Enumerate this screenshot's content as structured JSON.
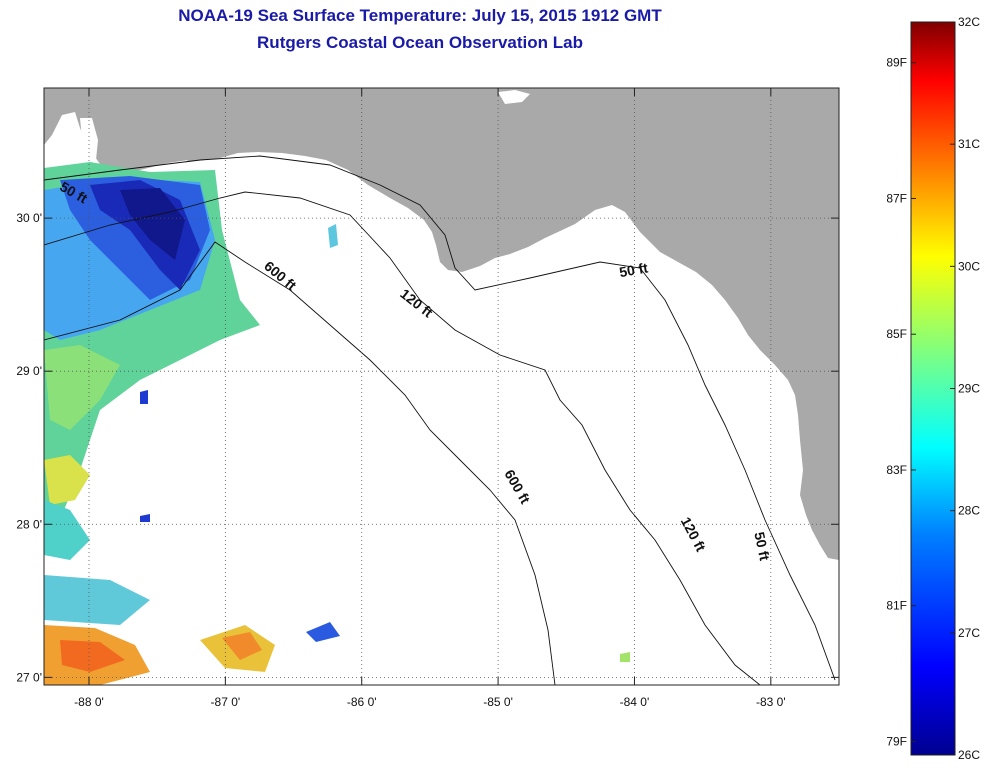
{
  "title": {
    "line1": "NOAA-19 Sea Surface Temperature:  July 15, 2015 1912 GMT",
    "line2": "Rutgers Coastal Ocean Observation Lab"
  },
  "map": {
    "lon_range": [
      -88.33,
      -82.5
    ],
    "lat_range": [
      26.95,
      30.85
    ],
    "x_ticks": [
      {
        "value": -88,
        "label": "-88 0'"
      },
      {
        "value": -87,
        "label": "-87 0'"
      },
      {
        "value": -86,
        "label": "-86 0'"
      },
      {
        "value": -85,
        "label": "-85 0'"
      },
      {
        "value": -84,
        "label": "-84 0'"
      },
      {
        "value": -83,
        "label": "-83 0'"
      }
    ],
    "y_ticks": [
      {
        "value": 30,
        "label": "30 0'"
      },
      {
        "value": 29,
        "label": "29 0'"
      },
      {
        "value": 28,
        "label": "28 0'"
      },
      {
        "value": 27,
        "label": "27 0'"
      }
    ],
    "contour_labels": [
      {
        "text": "50 ft",
        "lon": -88.13,
        "lat": 30.14,
        "angle": 30
      },
      {
        "text": "600 ft",
        "lon": -86.62,
        "lat": 29.6,
        "angle": 40
      },
      {
        "text": "120 ft",
        "lon": -85.62,
        "lat": 29.42,
        "angle": 38
      },
      {
        "text": "50 ft",
        "lon": -84.0,
        "lat": 29.63,
        "angle": -10
      },
      {
        "text": "600 ft",
        "lon": -84.89,
        "lat": 28.23,
        "angle": 60
      },
      {
        "text": "120 ft",
        "lon": -83.6,
        "lat": 27.92,
        "angle": 62
      },
      {
        "text": "50 ft",
        "lon": -83.1,
        "lat": 27.85,
        "angle": 78
      }
    ]
  },
  "colorbar": {
    "celsius": [
      {
        "value": 32,
        "label": "32C"
      },
      {
        "value": 31,
        "label": "31C"
      },
      {
        "value": 30,
        "label": "30C"
      },
      {
        "value": 29,
        "label": "29C"
      },
      {
        "value": 28,
        "label": "28C"
      },
      {
        "value": 27,
        "label": "27C"
      },
      {
        "value": 26,
        "label": "26C"
      }
    ],
    "fahrenheit": [
      {
        "value": 89,
        "label": "89F"
      },
      {
        "value": 87,
        "label": "87F"
      },
      {
        "value": 85,
        "label": "85F"
      },
      {
        "value": 83,
        "label": "83F"
      },
      {
        "value": 81,
        "label": "81F"
      },
      {
        "value": 79,
        "label": "79F"
      }
    ],
    "colors": [
      "#00008f",
      "#0000ff",
      "#007fff",
      "#00ffff",
      "#7fff7f",
      "#ffff00",
      "#ff7f00",
      "#ff0000",
      "#7f0000"
    ]
  }
}
